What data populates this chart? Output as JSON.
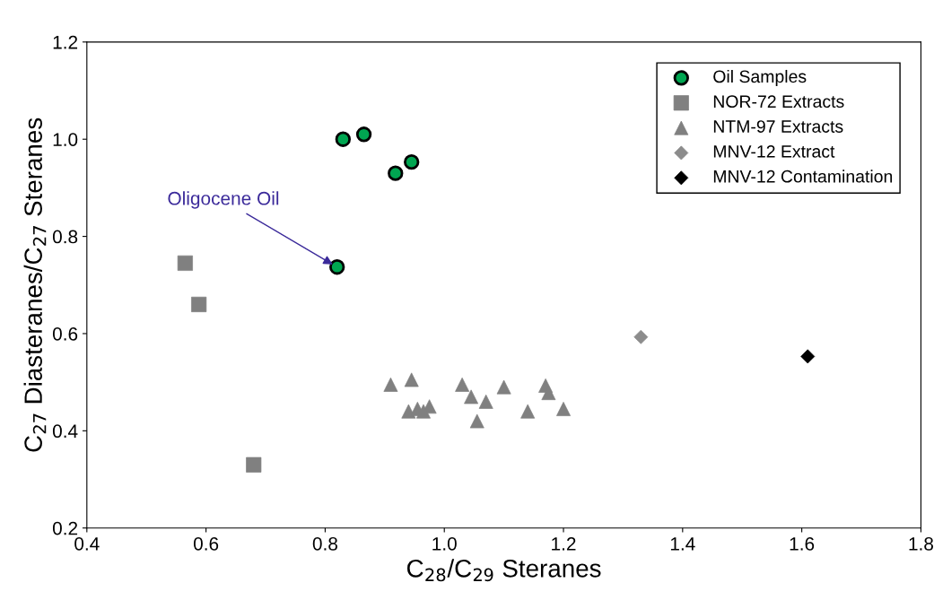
{
  "chart_data": {
    "type": "scatter",
    "xlabel": "C$_{28}$/C$_{29}$ Steranes",
    "ylabel": "C$_{27}$ Diasteranes/C$_{27}$ Steranes",
    "xlim": [
      0.4,
      1.8
    ],
    "xticks": [
      {
        "value": 0.4,
        "label": "0.4"
      },
      {
        "value": 0.6,
        "label": "0.6"
      },
      {
        "value": 0.8,
        "label": "0.8"
      },
      {
        "value": 1.0,
        "label": "1.0"
      },
      {
        "value": 1.2,
        "label": "1.2"
      },
      {
        "value": 1.4,
        "label": "1.4"
      },
      {
        "value": 1.6,
        "label": "1.6"
      },
      {
        "value": 1.8,
        "label": "1.8"
      }
    ],
    "ylim": [
      0.2,
      1.2
    ],
    "yticks": [
      {
        "value": 0.2,
        "label": "0.2"
      },
      {
        "value": 0.4,
        "label": "0.4"
      },
      {
        "value": 0.6,
        "label": "0.6"
      },
      {
        "value": 0.8,
        "label": "0.8"
      },
      {
        "value": 1.0,
        "label": "1.0"
      },
      {
        "value": 1.2,
        "label": "1.2"
      }
    ],
    "grid": false,
    "legend": "top right",
    "annotations": [
      {
        "text": "Oligocene Oil",
        "x": 0.82,
        "y": 0.737
      }
    ],
    "series": [
      {
        "name": "Oil Samples",
        "color": "#00a651",
        "marker": "circle",
        "x": [
          0.83,
          0.865,
          0.918,
          0.945,
          0.82
        ],
        "values": [
          1.0,
          1.01,
          0.93,
          0.953,
          0.737
        ]
      },
      {
        "name": "NOR-72 Extracts",
        "color": "#808080",
        "marker": "square",
        "x": [
          0.565,
          0.588,
          0.68
        ],
        "values": [
          0.745,
          0.66,
          0.33
        ]
      },
      {
        "name": "NTM-97 Extracts",
        "color": "#808080",
        "marker": "triangle",
        "x": [
          0.91,
          0.945,
          1.03,
          1.1,
          1.17,
          1.175,
          1.045,
          1.07,
          0.975,
          0.94,
          0.955,
          0.965,
          1.14,
          1.2,
          1.055
        ],
        "values": [
          0.495,
          0.505,
          0.495,
          0.49,
          0.493,
          0.478,
          0.47,
          0.46,
          0.45,
          0.44,
          0.445,
          0.44,
          0.44,
          0.445,
          0.42
        ]
      },
      {
        "name": "MNV-12 Extract",
        "color": "#8c8c8c",
        "marker": "diamond",
        "x": [
          1.33
        ],
        "values": [
          0.593
        ]
      },
      {
        "name": "MNV-12 Contamination",
        "color": "#000000",
        "marker": "diamond",
        "x": [
          1.61
        ],
        "values": [
          0.553
        ]
      }
    ]
  }
}
